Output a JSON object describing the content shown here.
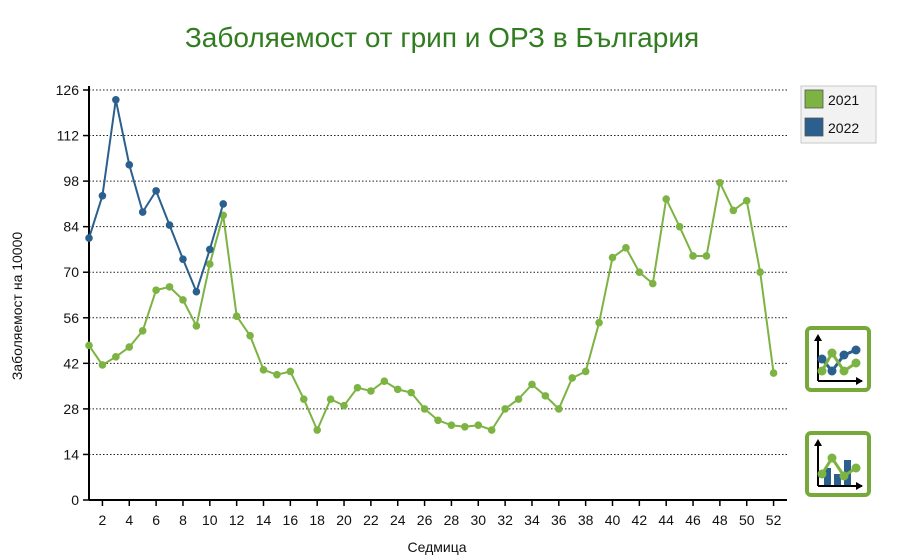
{
  "chart_data": {
    "type": "line",
    "title": "Заболяемост от грип и ОРЗ в България",
    "xlabel": "Седмица",
    "ylabel": "Заболяемост на 10000",
    "xlim": [
      0,
      52
    ],
    "ylim": [
      0,
      126
    ],
    "x_ticks": [
      2,
      4,
      6,
      8,
      10,
      12,
      14,
      16,
      18,
      20,
      22,
      24,
      26,
      28,
      30,
      32,
      34,
      36,
      38,
      40,
      42,
      44,
      46,
      48,
      50,
      52
    ],
    "y_ticks": [
      0,
      14,
      28,
      42,
      56,
      70,
      84,
      98,
      112,
      126
    ],
    "grid": "horizontal-dotted",
    "legend_position": "top-right",
    "series": [
      {
        "name": "2021",
        "color": "#7db343",
        "points": [
          [
            0,
            47.5
          ],
          [
            1,
            41.5
          ],
          [
            2,
            44
          ],
          [
            3,
            47
          ],
          [
            4,
            52
          ],
          [
            5,
            64.5
          ],
          [
            6,
            65.5
          ],
          [
            7,
            61.5
          ],
          [
            8,
            53.5
          ],
          [
            9,
            72.5
          ],
          [
            10,
            87.5
          ],
          [
            11,
            56.5
          ],
          [
            12,
            50.5
          ],
          [
            13,
            40
          ],
          [
            14,
            38.5
          ],
          [
            15,
            39.5
          ],
          [
            16,
            31
          ],
          [
            17,
            21.5
          ],
          [
            18,
            31
          ],
          [
            19,
            29
          ],
          [
            20,
            34.5
          ],
          [
            21,
            33.5
          ],
          [
            22,
            36.5
          ],
          [
            23,
            34
          ],
          [
            24,
            33
          ],
          [
            25,
            28
          ],
          [
            26,
            24.5
          ],
          [
            27,
            23
          ],
          [
            28,
            22.5
          ],
          [
            29,
            23
          ],
          [
            30,
            21.5
          ],
          [
            31,
            28
          ],
          [
            32,
            31
          ],
          [
            33,
            35.5
          ],
          [
            34,
            32
          ],
          [
            35,
            28
          ],
          [
            36,
            37.5
          ],
          [
            37,
            39.5
          ],
          [
            38,
            54.5
          ],
          [
            39,
            74.5
          ],
          [
            40,
            77.5
          ],
          [
            41,
            70
          ],
          [
            42,
            66.5
          ],
          [
            43,
            92.5
          ],
          [
            44,
            84
          ],
          [
            45,
            75
          ],
          [
            46,
            75
          ],
          [
            47,
            97.5
          ],
          [
            48,
            89
          ],
          [
            49,
            92
          ],
          [
            50,
            70
          ],
          [
            51,
            39
          ]
        ]
      },
      {
        "name": "2022",
        "color": "#2b5f8e",
        "points": [
          [
            0,
            80.5
          ],
          [
            1,
            93.5
          ],
          [
            2,
            123
          ],
          [
            3,
            103
          ],
          [
            4,
            88.5
          ],
          [
            5,
            95
          ],
          [
            6,
            84.5
          ],
          [
            7,
            74
          ],
          [
            8,
            64
          ],
          [
            9,
            77
          ],
          [
            10,
            91
          ]
        ]
      }
    ]
  },
  "controls": {
    "line_chart_icon": "line-chart-icon",
    "bar_line_chart_icon": "bar-line-chart-icon"
  }
}
